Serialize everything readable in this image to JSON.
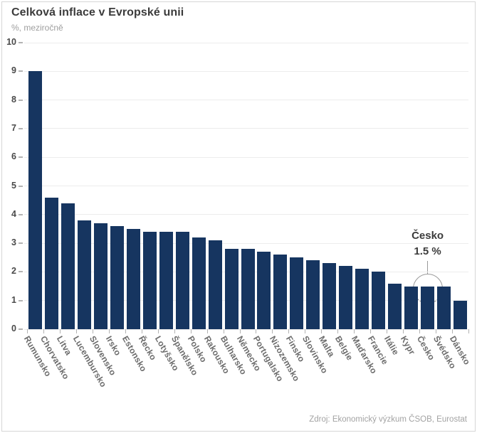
{
  "chart_data": {
    "type": "bar",
    "title": "Celková inflace v Evropské unii",
    "subtitle": "%, meziročně",
    "source": "Zdroj: Ekonomický výzkum ČSOB, Eurostat",
    "categories": [
      "Rumunsko",
      "Chorvatsko",
      "Litva",
      "Lucembursko",
      "Slovensko",
      "Irsko",
      "Estonsko",
      "Řecko",
      "Lotyšsko",
      "Španělsko",
      "Polsko",
      "Rakousko",
      "Bulharsko",
      "Německo",
      "Portugalsko",
      "Nizozemsko",
      "Finsko",
      "Slovinsko",
      "Malta",
      "Belgie",
      "Maďarsko",
      "Francie",
      "Itálie",
      "Kypr",
      "Česko",
      "Švédsko",
      "Dánsko"
    ],
    "values": [
      9.0,
      4.6,
      4.4,
      3.8,
      3.7,
      3.6,
      3.5,
      3.4,
      3.4,
      3.4,
      3.2,
      3.1,
      2.8,
      2.8,
      2.7,
      2.6,
      2.5,
      2.4,
      2.3,
      2.2,
      2.1,
      2.0,
      1.6,
      1.5,
      1.5,
      1.5,
      1.0
    ],
    "xlabel": "",
    "ylabel": "%, meziročně",
    "ylim": [
      0,
      10
    ],
    "yticks": [
      0,
      1,
      2,
      3,
      4,
      5,
      6,
      7,
      8,
      9,
      10
    ],
    "grid": "horizontal-light",
    "legend": "none",
    "bar_color": "#163560",
    "annotation": {
      "label": "Česko",
      "value_label": "1.5 %",
      "target_category": "Česko",
      "circle_color": "#999999"
    }
  },
  "colors": {
    "bar": "#163560",
    "title_text": "#3b3b3b",
    "muted_text": "#9e9e9e",
    "axis_text": "#4a4a4a",
    "category_text": "#6b6b6b",
    "gridline": "#ececec",
    "tick": "#b3b3b3",
    "panel_border": "#d6d6d6",
    "background": "#ffffff"
  }
}
